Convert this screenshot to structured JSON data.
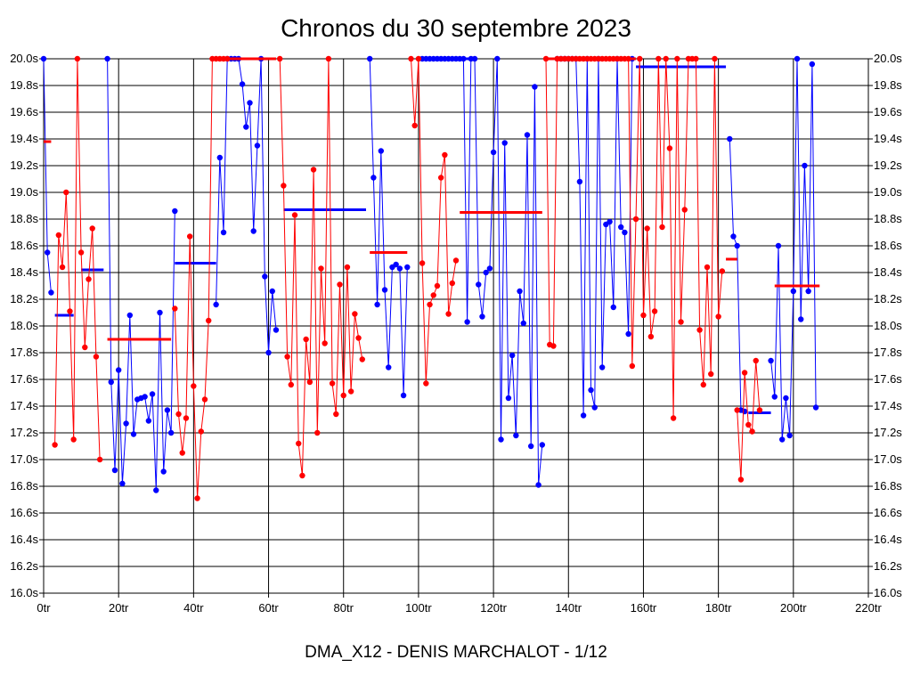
{
  "chart_data": {
    "type": "line",
    "title": "Chronos du 30 septembre 2023",
    "footer": "DMA_X12 - DENIS MARCHALOT - 1/12",
    "xlabel": "",
    "ylabel": "",
    "xlim": [
      0,
      220
    ],
    "ylim": [
      16.0,
      20.0
    ],
    "grid": true,
    "x_ticks": [
      "0tr",
      "20tr",
      "40tr",
      "60tr",
      "80tr",
      "100tr",
      "120tr",
      "140tr",
      "160tr",
      "180tr",
      "200tr",
      "220tr"
    ],
    "y_ticks": [
      "16.0s",
      "16.2s",
      "16.4s",
      "16.6s",
      "16.8s",
      "17.0s",
      "17.2s",
      "17.4s",
      "17.6s",
      "17.8s",
      "18.0s",
      "18.2s",
      "18.4s",
      "18.6s",
      "18.8s",
      "19.0s",
      "19.2s",
      "19.4s",
      "19.6s",
      "19.8s",
      "20.0s"
    ],
    "series": [
      {
        "color": "#0000ff",
        "segments": [
          [
            [
              0,
              20.0
            ],
            [
              1,
              18.55
            ],
            [
              2,
              18.25
            ]
          ],
          [
            [
              17,
              20.0
            ],
            [
              18,
              17.58
            ],
            [
              19,
              16.92
            ],
            [
              20,
              17.67
            ],
            [
              21,
              16.82
            ],
            [
              22,
              17.27
            ],
            [
              23,
              18.08
            ],
            [
              24,
              17.19
            ],
            [
              25,
              17.45
            ],
            [
              26,
              17.46
            ],
            [
              27,
              17.47
            ],
            [
              28,
              17.29
            ],
            [
              29,
              17.49
            ],
            [
              30,
              16.77
            ],
            [
              31,
              18.1
            ],
            [
              32,
              16.91
            ],
            [
              33,
              17.37
            ],
            [
              34,
              17.2
            ],
            [
              35,
              18.86
            ]
          ],
          [
            [
              46,
              18.16
            ],
            [
              47,
              19.26
            ],
            [
              48,
              18.7
            ],
            [
              49,
              20.0
            ],
            [
              50,
              20.0
            ],
            [
              51,
              20.0
            ],
            [
              52,
              20.0
            ],
            [
              53,
              19.81
            ],
            [
              54,
              19.49
            ],
            [
              55,
              19.67
            ],
            [
              56,
              18.71
            ],
            [
              57,
              19.35
            ],
            [
              58,
              20.0
            ],
            [
              59,
              18.37
            ],
            [
              60,
              17.8
            ],
            [
              61,
              18.26
            ],
            [
              62,
              17.97
            ]
          ],
          [
            [
              87,
              20.0
            ],
            [
              88,
              19.11
            ],
            [
              89,
              18.16
            ],
            [
              90,
              19.31
            ],
            [
              91,
              18.27
            ],
            [
              92,
              17.69
            ],
            [
              93,
              18.44
            ],
            [
              94,
              18.46
            ],
            [
              95,
              18.43
            ],
            [
              96,
              17.48
            ],
            [
              97,
              18.44
            ]
          ],
          [
            [
              101,
              20.0
            ],
            [
              102,
              20.0
            ],
            [
              103,
              20.0
            ],
            [
              104,
              20.0
            ],
            [
              105,
              20.0
            ],
            [
              106,
              20.0
            ],
            [
              107,
              20.0
            ],
            [
              108,
              20.0
            ],
            [
              109,
              20.0
            ],
            [
              110,
              20.0
            ],
            [
              111,
              20.0
            ],
            [
              112,
              20.0
            ],
            [
              113,
              18.03
            ],
            [
              114,
              20.0
            ],
            [
              115,
              20.0
            ],
            [
              116,
              18.31
            ],
            [
              117,
              18.07
            ],
            [
              118,
              18.4
            ],
            [
              119,
              18.43
            ],
            [
              120,
              19.3
            ],
            [
              121,
              20.0
            ],
            [
              122,
              17.15
            ],
            [
              123,
              19.37
            ],
            [
              124,
              17.46
            ],
            [
              125,
              17.78
            ],
            [
              126,
              17.18
            ],
            [
              127,
              18.26
            ],
            [
              128,
              18.02
            ],
            [
              129,
              19.43
            ],
            [
              130,
              17.1
            ],
            [
              131,
              19.79
            ],
            [
              132,
              16.81
            ],
            [
              133,
              17.11
            ]
          ],
          [
            [
              137,
              20.0
            ],
            [
              138,
              20.0
            ],
            [
              139,
              20.0
            ],
            [
              140,
              20.0
            ],
            [
              141,
              20.0
            ],
            [
              142,
              20.0
            ],
            [
              143,
              19.08
            ],
            [
              144,
              17.33
            ],
            [
              145,
              20.0
            ],
            [
              146,
              17.52
            ],
            [
              147,
              17.39
            ],
            [
              148,
              20.0
            ],
            [
              149,
              17.69
            ],
            [
              150,
              18.76
            ],
            [
              151,
              18.78
            ],
            [
              152,
              18.14
            ],
            [
              153,
              20.0
            ],
            [
              154,
              18.74
            ],
            [
              155,
              18.7
            ],
            [
              156,
              17.94
            ],
            [
              157,
              20.0
            ]
          ],
          [
            [
              183,
              19.4
            ],
            [
              184,
              18.67
            ],
            [
              185,
              18.6
            ],
            [
              186,
              17.37
            ],
            [
              187,
              17.36
            ]
          ],
          [
            [
              194,
              17.74
            ],
            [
              195,
              17.47
            ],
            [
              196,
              18.6
            ],
            [
              197,
              17.15
            ],
            [
              198,
              17.46
            ],
            [
              199,
              17.18
            ],
            [
              200,
              18.26
            ],
            [
              201,
              20.0
            ],
            [
              202,
              18.05
            ],
            [
              203,
              19.2
            ],
            [
              204,
              18.26
            ],
            [
              205,
              19.96
            ],
            [
              206,
              17.39
            ]
          ]
        ],
        "averages": [
          {
            "x1": 3,
            "x2": 8,
            "y": 18.08
          },
          {
            "x1": 10,
            "x2": 16,
            "y": 18.42
          },
          {
            "x1": 35,
            "x2": 46,
            "y": 18.47
          },
          {
            "x1": 64,
            "x2": 86,
            "y": 18.87
          },
          {
            "x1": 102,
            "x2": 114,
            "y": 20.0
          },
          {
            "x1": 158,
            "x2": 182,
            "y": 19.94
          },
          {
            "x1": 188,
            "x2": 194,
            "y": 17.35
          }
        ]
      },
      {
        "color": "#ff0000",
        "segments": [
          [
            [
              3,
              17.11
            ],
            [
              4,
              18.68
            ],
            [
              5,
              18.44
            ],
            [
              6,
              19.0
            ],
            [
              7,
              18.11
            ],
            [
              8,
              17.15
            ],
            [
              9,
              20.0
            ],
            [
              10,
              18.55
            ],
            [
              11,
              17.84
            ],
            [
              12,
              18.35
            ],
            [
              13,
              18.73
            ],
            [
              14,
              17.77
            ],
            [
              15,
              17.0
            ]
          ],
          [
            [
              35,
              18.13
            ],
            [
              36,
              17.34
            ],
            [
              37,
              17.05
            ],
            [
              38,
              17.31
            ],
            [
              39,
              18.67
            ],
            [
              40,
              17.55
            ],
            [
              41,
              16.71
            ],
            [
              42,
              17.21
            ],
            [
              43,
              17.45
            ],
            [
              44,
              18.04
            ],
            [
              45,
              20.0
            ],
            [
              46,
              20.0
            ],
            [
              47,
              20.0
            ],
            [
              48,
              20.0
            ],
            [
              49,
              20.0
            ]
          ],
          [
            [
              63,
              20.0
            ],
            [
              64,
              19.05
            ],
            [
              65,
              17.77
            ],
            [
              66,
              17.56
            ],
            [
              67,
              18.83
            ],
            [
              68,
              17.12
            ],
            [
              69,
              16.88
            ],
            [
              70,
              17.9
            ],
            [
              71,
              17.58
            ],
            [
              72,
              19.17
            ],
            [
              73,
              17.2
            ],
            [
              74,
              18.43
            ],
            [
              75,
              17.87
            ],
            [
              76,
              20.0
            ],
            [
              77,
              17.57
            ],
            [
              78,
              17.34
            ],
            [
              79,
              18.31
            ],
            [
              80,
              17.48
            ],
            [
              81,
              18.44
            ],
            [
              82,
              17.51
            ],
            [
              83,
              18.09
            ],
            [
              84,
              17.91
            ],
            [
              85,
              17.75
            ]
          ],
          [
            [
              98,
              20.0
            ],
            [
              99,
              19.5
            ],
            [
              100,
              20.0
            ],
            [
              101,
              18.47
            ],
            [
              102,
              17.57
            ],
            [
              103,
              18.16
            ],
            [
              104,
              18.23
            ],
            [
              105,
              18.3
            ],
            [
              106,
              19.11
            ],
            [
              107,
              19.28
            ],
            [
              108,
              18.09
            ],
            [
              109,
              18.32
            ],
            [
              110,
              18.49
            ]
          ],
          [
            [
              134,
              20.0
            ],
            [
              135,
              17.86
            ],
            [
              136,
              17.85
            ],
            [
              137,
              20.0
            ],
            [
              138,
              20.0
            ],
            [
              139,
              20.0
            ],
            [
              140,
              20.0
            ],
            [
              141,
              20.0
            ],
            [
              142,
              20.0
            ],
            [
              143,
              20.0
            ],
            [
              144,
              20.0
            ],
            [
              145,
              20.0
            ],
            [
              146,
              20.0
            ],
            [
              147,
              20.0
            ],
            [
              148,
              20.0
            ],
            [
              149,
              20.0
            ],
            [
              150,
              20.0
            ],
            [
              151,
              20.0
            ],
            [
              152,
              20.0
            ],
            [
              153,
              20.0
            ],
            [
              154,
              20.0
            ],
            [
              155,
              20.0
            ],
            [
              156,
              20.0
            ],
            [
              157,
              17.7
            ],
            [
              158,
              18.8
            ],
            [
              159,
              20.0
            ],
            [
              160,
              18.08
            ],
            [
              161,
              18.73
            ],
            [
              162,
              17.92
            ],
            [
              163,
              18.11
            ],
            [
              164,
              20.0
            ],
            [
              165,
              18.74
            ],
            [
              166,
              20.0
            ],
            [
              167,
              19.33
            ],
            [
              168,
              17.31
            ],
            [
              169,
              20.0
            ],
            [
              170,
              18.03
            ],
            [
              171,
              18.87
            ],
            [
              172,
              20.0
            ],
            [
              173,
              20.0
            ],
            [
              174,
              20.0
            ],
            [
              175,
              17.97
            ],
            [
              176,
              17.56
            ],
            [
              177,
              18.44
            ],
            [
              178,
              17.64
            ],
            [
              179,
              20.0
            ],
            [
              180,
              18.07
            ],
            [
              181,
              18.41
            ]
          ],
          [
            [
              185,
              17.37
            ],
            [
              186,
              16.85
            ],
            [
              187,
              17.65
            ],
            [
              188,
              17.26
            ],
            [
              189,
              17.21
            ],
            [
              190,
              17.74
            ],
            [
              191,
              17.37
            ]
          ]
        ],
        "averages": [
          {
            "x1": 0,
            "x2": 2,
            "y": 19.38
          },
          {
            "x1": 17,
            "x2": 34,
            "y": 17.9
          },
          {
            "x1": 48,
            "x2": 62,
            "y": 20.0
          },
          {
            "x1": 87,
            "x2": 97,
            "y": 18.55
          },
          {
            "x1": 111,
            "x2": 133,
            "y": 18.85
          },
          {
            "x1": 134,
            "x2": 158,
            "y": 20.0
          },
          {
            "x1": 182,
            "x2": 185,
            "y": 18.5
          },
          {
            "x1": 195,
            "x2": 207,
            "y": 18.3
          }
        ]
      }
    ]
  }
}
